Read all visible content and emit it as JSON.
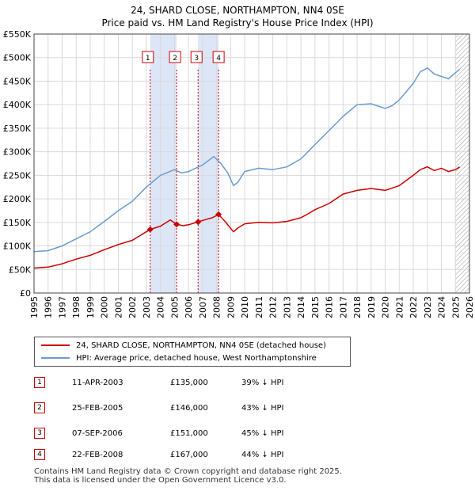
{
  "header": {
    "title": "24, SHARD CLOSE, NORTHAMPTON, NN4 0SE",
    "subtitle": "Price paid vs. HM Land Registry's House Price Index (HPI)"
  },
  "colors": {
    "property_line": "#cc0000",
    "hpi_line": "#6b9ad0",
    "shade": "#dde6f7",
    "grid": "#d9d9d9"
  },
  "chart_data": {
    "type": "line",
    "title": "24, SHARD CLOSE, NORTHAMPTON, NN4 0SE",
    "subtitle": "Price paid vs. HM Land Registry's House Price Index (HPI)",
    "xlabel": "",
    "ylabel": "",
    "xlim": [
      1995,
      2026
    ],
    "ylim": [
      0,
      550000
    ],
    "y_ticks": [
      0,
      50000,
      100000,
      150000,
      200000,
      250000,
      300000,
      350000,
      400000,
      450000,
      500000,
      550000
    ],
    "y_tick_labels": [
      "£0",
      "£50K",
      "£100K",
      "£150K",
      "£200K",
      "£250K",
      "£300K",
      "£350K",
      "£400K",
      "£450K",
      "£500K",
      "£550K"
    ],
    "x_ticks": [
      1995,
      1996,
      1997,
      1998,
      1999,
      2000,
      2001,
      2002,
      2003,
      2004,
      2005,
      2006,
      2007,
      2008,
      2009,
      2010,
      2011,
      2012,
      2013,
      2014,
      2015,
      2016,
      2017,
      2018,
      2019,
      2020,
      2021,
      2022,
      2023,
      2024,
      2025,
      2026
    ],
    "x_tick_labels": [
      "1995",
      "1996",
      "1997",
      "1998",
      "1999",
      "2000",
      "2001",
      "2002",
      "2003",
      "2004",
      "2005",
      "2006",
      "2007",
      "2008",
      "2009",
      "2010",
      "2011",
      "2012",
      "2013",
      "2014",
      "2015",
      "2016",
      "2017",
      "2018",
      "2019",
      "2020",
      "2021",
      "2022",
      "2023",
      "2024",
      "2025",
      "2026"
    ],
    "grid": true,
    "shaded_ranges": [
      [
        2003.27,
        2005.15
      ],
      [
        2006.68,
        2008.14
      ]
    ],
    "hatched_after": 2025.0,
    "series": [
      {
        "name": "24, SHARD CLOSE, NORTHAMPTON, NN4 0SE (detached house)",
        "color": "#cc0000",
        "x": [
          1995.0,
          1996.0,
          1997.0,
          1998.0,
          1999.0,
          2000.0,
          2001.0,
          2002.0,
          2003.27,
          2004.0,
          2004.7,
          2005.15,
          2005.6,
          2006.0,
          2006.68,
          2007.2,
          2007.7,
          2008.14,
          2008.6,
          2009.2,
          2009.5,
          2010.0,
          2011.0,
          2012.0,
          2013.0,
          2014.0,
          2014.5,
          2015.0,
          2016.0,
          2017.0,
          2018.0,
          2019.0,
          2020.0,
          2021.0,
          2022.0,
          2022.5,
          2023.0,
          2023.5,
          2024.0,
          2024.5,
          2025.0,
          2025.3
        ],
        "y": [
          53000,
          55000,
          62000,
          72000,
          80000,
          92000,
          103000,
          112000,
          135000,
          142000,
          155000,
          146000,
          143000,
          145000,
          151000,
          156000,
          160000,
          167000,
          152000,
          130000,
          138000,
          147000,
          150000,
          149000,
          152000,
          160000,
          168000,
          177000,
          190000,
          210000,
          218000,
          222000,
          218000,
          228000,
          250000,
          262000,
          268000,
          260000,
          265000,
          258000,
          262000,
          268000
        ]
      },
      {
        "name": "HPI: Average price, detached house, West Northamptonshire",
        "color": "#6b9ad0",
        "x": [
          1995.0,
          1996.0,
          1997.0,
          1998.0,
          1999.0,
          2000.0,
          2001.0,
          2002.0,
          2003.0,
          2004.0,
          2005.0,
          2005.5,
          2006.0,
          2007.0,
          2007.8,
          2008.3,
          2008.8,
          2009.2,
          2009.5,
          2010.0,
          2011.0,
          2012.0,
          2013.0,
          2014.0,
          2015.0,
          2016.0,
          2017.0,
          2018.0,
          2019.0,
          2020.0,
          2020.5,
          2021.0,
          2022.0,
          2022.5,
          2023.0,
          2023.5,
          2024.0,
          2024.5,
          2025.0,
          2025.3
        ],
        "y": [
          88000,
          90000,
          100000,
          115000,
          130000,
          152000,
          175000,
          195000,
          225000,
          250000,
          262000,
          255000,
          258000,
          272000,
          290000,
          275000,
          255000,
          228000,
          235000,
          258000,
          265000,
          262000,
          268000,
          285000,
          315000,
          345000,
          375000,
          400000,
          402000,
          392000,
          398000,
          410000,
          445000,
          470000,
          478000,
          465000,
          460000,
          455000,
          468000,
          475000
        ]
      }
    ],
    "transactions": [
      {
        "id": "1",
        "date": "11-APR-2003",
        "x": 2003.27,
        "price": 135000,
        "price_label": "£135,000",
        "hpi_label": "39% ↓ HPI"
      },
      {
        "id": "2",
        "date": "25-FEB-2005",
        "x": 2005.15,
        "price": 146000,
        "price_label": "£146,000",
        "hpi_label": "43% ↓ HPI"
      },
      {
        "id": "3",
        "date": "07-SEP-2006",
        "x": 2006.68,
        "price": 151000,
        "price_label": "£151,000",
        "hpi_label": "45% ↓ HPI"
      },
      {
        "id": "4",
        "date": "22-FEB-2008",
        "x": 2008.14,
        "price": 167000,
        "price_label": "£167,000",
        "hpi_label": "44% ↓ HPI"
      }
    ]
  },
  "legend": {
    "property_label": "24, SHARD CLOSE, NORTHAMPTON, NN4 0SE (detached house)",
    "hpi_label": "HPI: Average price, detached house, West Northamptonshire"
  },
  "footer": {
    "line1": "Contains HM Land Registry data © Crown copyright and database right 2025.",
    "line2": "This data is licensed under the Open Government Licence v3.0."
  }
}
